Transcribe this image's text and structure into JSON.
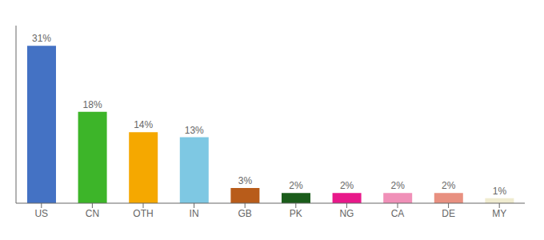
{
  "chart_data": {
    "type": "bar",
    "categories": [
      "US",
      "CN",
      "OTH",
      "IN",
      "GB",
      "PK",
      "NG",
      "CA",
      "DE",
      "MY"
    ],
    "values": [
      31,
      18,
      14,
      13,
      3,
      2,
      2,
      2,
      2,
      1
    ],
    "value_labels": [
      "31%",
      "18%",
      "14%",
      "13%",
      "3%",
      "2%",
      "2%",
      "2%",
      "2%",
      "1%"
    ],
    "colors": [
      "#4472c4",
      "#3db529",
      "#f5a800",
      "#7ec8e3",
      "#b85c1a",
      "#1a5c1a",
      "#e8188a",
      "#f090b8",
      "#e89080",
      "#f0ecd0"
    ],
    "ylim": [
      0,
      35
    ],
    "data_labels": true,
    "tick_labels": "x",
    "grid": false
  }
}
